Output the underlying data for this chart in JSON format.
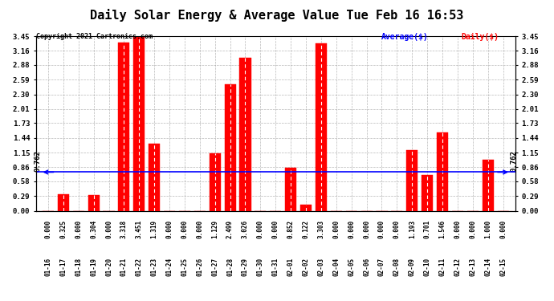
{
  "title": "Daily Solar Energy & Average Value Tue Feb 16 16:53",
  "copyright": "Copyright 2021 Cartronics.com",
  "categories": [
    "01-16",
    "01-17",
    "01-18",
    "01-19",
    "01-20",
    "01-21",
    "01-22",
    "01-23",
    "01-24",
    "01-25",
    "01-26",
    "01-27",
    "01-28",
    "01-29",
    "01-30",
    "01-31",
    "02-01",
    "02-02",
    "02-03",
    "02-04",
    "02-05",
    "02-06",
    "02-07",
    "02-08",
    "02-09",
    "02-10",
    "02-11",
    "02-12",
    "02-13",
    "02-14",
    "02-15"
  ],
  "values": [
    0.0,
    0.325,
    0.0,
    0.304,
    0.0,
    3.318,
    3.451,
    1.319,
    0.0,
    0.0,
    0.0,
    1.129,
    2.499,
    3.026,
    0.0,
    0.0,
    0.852,
    0.122,
    3.303,
    0.0,
    0.0,
    0.0,
    0.0,
    0.0,
    1.193,
    0.701,
    1.546,
    0.0,
    0.0,
    1.0,
    0.0
  ],
  "average_value": 0.762,
  "bar_color": "#ff0000",
  "average_line_color": "#0000ff",
  "background_color": "#ffffff",
  "grid_color": "#999999",
  "ylim_max": 3.45,
  "yticks": [
    0.0,
    0.29,
    0.58,
    0.86,
    1.15,
    1.44,
    1.73,
    2.01,
    2.3,
    2.59,
    2.88,
    3.16,
    3.45
  ],
  "title_fontsize": 11,
  "tick_fontsize": 6.5,
  "avg_text_left": "Average($)",
  "avg_text_right": "Daily($)",
  "avg_annotation": "0.762"
}
